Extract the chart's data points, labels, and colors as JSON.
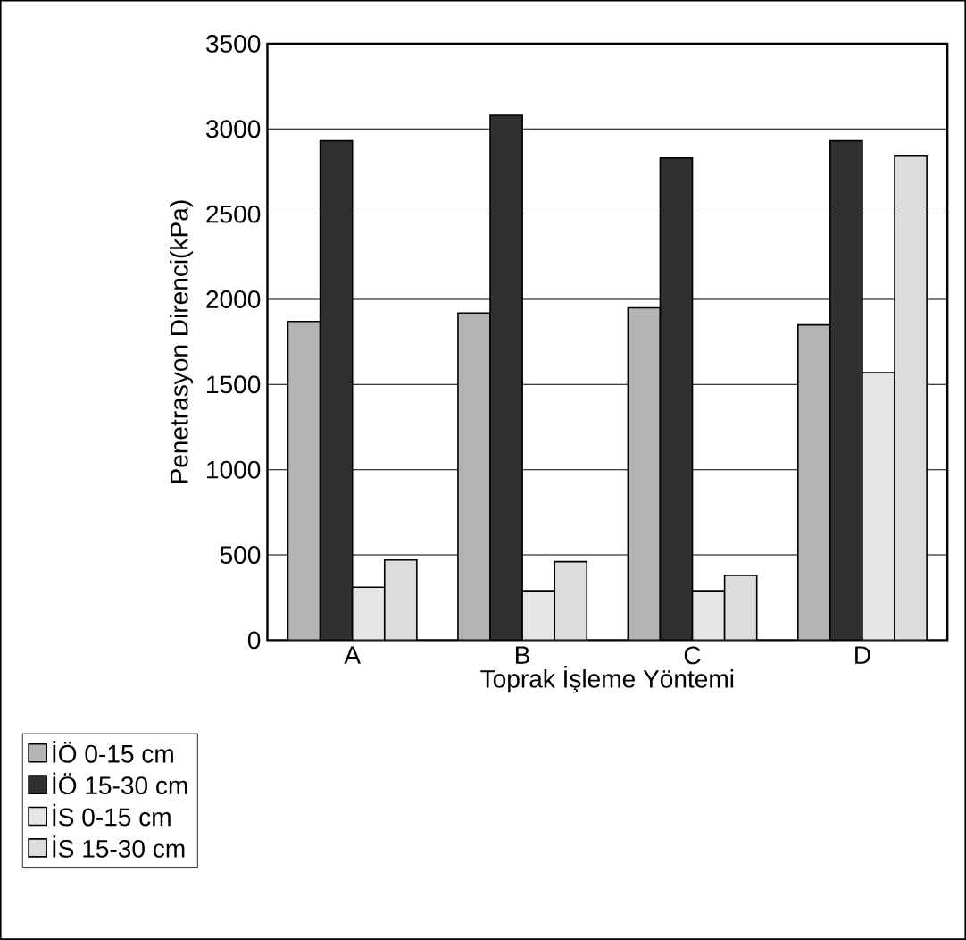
{
  "chart_data": {
    "type": "bar",
    "xlabel": "Toprak İşleme Yöntemi",
    "ylabel": "Penetrasyon Direnci(kPa)",
    "categories": [
      "A",
      "B",
      "C",
      "D"
    ],
    "series": [
      {
        "name": "İÖ 0-15 cm",
        "color": "#b4b4b4",
        "values": [
          1870,
          1920,
          1950,
          1850
        ]
      },
      {
        "name": "İÖ 15-30 cm",
        "color": "#303030",
        "values": [
          2930,
          3080,
          2830,
          2930
        ]
      },
      {
        "name": "İS 0-15 cm",
        "color": "#e6e6e6",
        "values": [
          310,
          290,
          290,
          1570
        ]
      },
      {
        "name": "İS 15-30 cm",
        "color": "#dcdcdc",
        "values": [
          470,
          460,
          380,
          2840
        ]
      }
    ],
    "ylim": [
      0,
      3500
    ],
    "yticks": [
      0,
      500,
      1000,
      1500,
      2000,
      2500,
      3000,
      3500
    ],
    "grid": "y",
    "legend": "bottom left"
  }
}
